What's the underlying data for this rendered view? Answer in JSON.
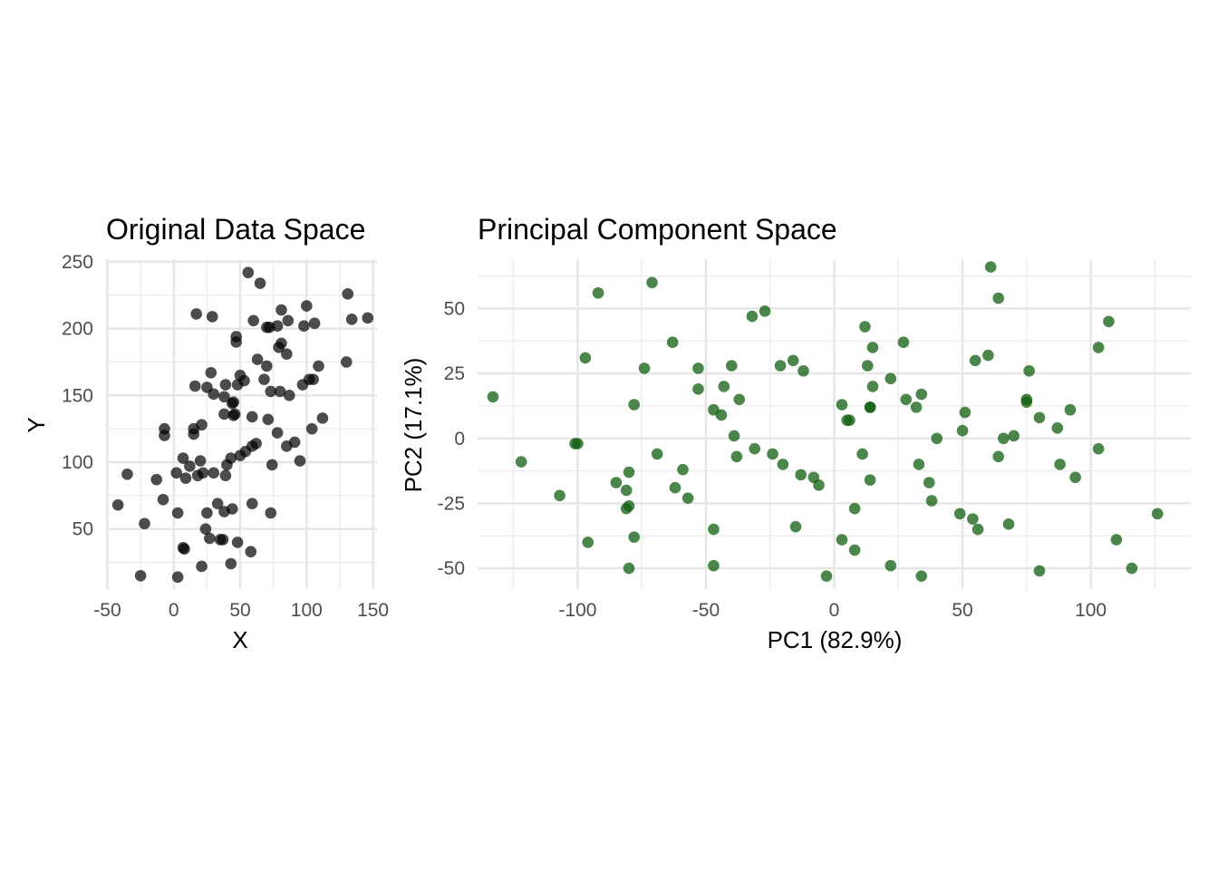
{
  "chart_data": [
    {
      "type": "scatter",
      "title": "Original Data Space",
      "xlabel": "X",
      "ylabel": "Y",
      "xlim": [
        -51,
        153
      ],
      "ylim": [
        5,
        252
      ],
      "xticks": [
        -50,
        0,
        50,
        100,
        150
      ],
      "yticks": [
        50,
        100,
        150,
        200,
        250
      ],
      "xtick_labels": [
        "-50",
        "0",
        "50",
        "100",
        "150"
      ],
      "ytick_labels": [
        "50",
        "100",
        "150",
        "200",
        "250"
      ],
      "grid": true,
      "point_color": "#000000",
      "point_opacity": 0.7,
      "series": [
        {
          "points": [
            [
              56,
              242
            ],
            [
              65,
              234
            ],
            [
              17,
              211
            ],
            [
              29,
              209
            ],
            [
              131,
              226
            ],
            [
              100,
              217
            ],
            [
              134,
              207
            ],
            [
              146,
              208
            ],
            [
              60,
              206
            ],
            [
              70,
              201
            ],
            [
              72,
              201
            ],
            [
              78,
              202
            ],
            [
              81,
              214
            ],
            [
              86,
              206
            ],
            [
              98,
              202
            ],
            [
              106,
              204
            ],
            [
              47,
              194
            ],
            [
              47,
              190
            ],
            [
              81,
              189
            ],
            [
              79,
              186
            ],
            [
              85,
              181
            ],
            [
              63,
              177
            ],
            [
              70,
              172
            ],
            [
              109,
              172
            ],
            [
              130,
              175
            ],
            [
              28,
              167
            ],
            [
              50,
              165
            ],
            [
              68,
              162
            ],
            [
              53,
              161
            ],
            [
              16,
              157
            ],
            [
              25,
              156
            ],
            [
              39,
              158
            ],
            [
              48,
              158
            ],
            [
              30,
              151
            ],
            [
              38,
              149
            ],
            [
              73,
              153
            ],
            [
              80,
              153
            ],
            [
              87,
              150
            ],
            [
              97,
              158
            ],
            [
              102,
              162
            ],
            [
              105,
              162
            ],
            [
              45,
              145
            ],
            [
              44,
              144
            ],
            [
              38,
              136
            ],
            [
              45,
              135
            ],
            [
              46,
              136
            ],
            [
              59,
              134
            ],
            [
              71,
              132
            ],
            [
              78,
              122
            ],
            [
              104,
              125
            ],
            [
              112,
              133
            ],
            [
              -7,
              125
            ],
            [
              -7,
              120
            ],
            [
              15,
              125
            ],
            [
              21,
              128
            ],
            [
              15,
              121
            ],
            [
              62,
              114
            ],
            [
              59,
              112
            ],
            [
              54,
              108
            ],
            [
              50,
              105
            ],
            [
              43,
              103
            ],
            [
              85,
              112
            ],
            [
              91,
              115
            ],
            [
              74,
              98
            ],
            [
              95,
              101
            ],
            [
              -35,
              91
            ],
            [
              7,
              103
            ],
            [
              12,
              97
            ],
            [
              20,
              101
            ],
            [
              2,
              92
            ],
            [
              9,
              88
            ],
            [
              18,
              90
            ],
            [
              22,
              92
            ],
            [
              30,
              92
            ],
            [
              39,
              90
            ],
            [
              40,
              98
            ],
            [
              -13,
              87
            ],
            [
              -8,
              72
            ],
            [
              -42,
              68
            ],
            [
              -22,
              54
            ],
            [
              3,
              62
            ],
            [
              25,
              62
            ],
            [
              33,
              69
            ],
            [
              38,
              63
            ],
            [
              44,
              65
            ],
            [
              59,
              69
            ],
            [
              73,
              62
            ],
            [
              24,
              50
            ],
            [
              27,
              43
            ],
            [
              35,
              42
            ],
            [
              37,
              42
            ],
            [
              48,
              40
            ],
            [
              7,
              36
            ],
            [
              8,
              35
            ],
            [
              58,
              33
            ],
            [
              21,
              22
            ],
            [
              43,
              24
            ],
            [
              -25,
              15
            ],
            [
              3,
              14
            ]
          ]
        }
      ]
    },
    {
      "type": "scatter",
      "title": "Principal Component Space",
      "xlabel": "PC1 (82.9%)",
      "ylabel": "PC2 (17.1%)",
      "xlim": [
        -139,
        139
      ],
      "ylim": [
        -58,
        69
      ],
      "xticks": [
        -100,
        -50,
        0,
        50,
        100
      ],
      "yticks": [
        -50,
        -25,
        0,
        25,
        50
      ],
      "xtick_labels": [
        "-100",
        "-50",
        "0",
        "50",
        "100"
      ],
      "ytick_labels": [
        "-50",
        "-25",
        "0",
        "25",
        "50"
      ],
      "grid": true,
      "point_color": "#0f5e0f",
      "point_opacity": 0.75,
      "series": [
        {
          "points": [
            [
              -133,
              16
            ],
            [
              -122,
              -9
            ],
            [
              -107,
              -22
            ],
            [
              -101,
              -2
            ],
            [
              -100,
              -2
            ],
            [
              -97,
              31
            ],
            [
              -96,
              -40
            ],
            [
              -92,
              56
            ],
            [
              -85,
              -17
            ],
            [
              -81,
              -27
            ],
            [
              -81,
              -20
            ],
            [
              -80,
              -13
            ],
            [
              -80,
              -26
            ],
            [
              -80,
              -50
            ],
            [
              -78,
              13
            ],
            [
              -78,
              -38
            ],
            [
              -74,
              27
            ],
            [
              -71,
              60
            ],
            [
              -69,
              -6
            ],
            [
              -63,
              37
            ],
            [
              -62,
              -19
            ],
            [
              -59,
              -12
            ],
            [
              -57,
              -23
            ],
            [
              -53,
              27
            ],
            [
              -53,
              19
            ],
            [
              -47,
              11
            ],
            [
              -47,
              -35
            ],
            [
              -47,
              -49
            ],
            [
              -44,
              9
            ],
            [
              -43,
              20
            ],
            [
              -40,
              28
            ],
            [
              -39,
              1
            ],
            [
              -38,
              -7
            ],
            [
              -37,
              15
            ],
            [
              -32,
              47
            ],
            [
              -31,
              -4
            ],
            [
              -27,
              49
            ],
            [
              -24,
              -6
            ],
            [
              -21,
              28
            ],
            [
              -20,
              -10
            ],
            [
              -16,
              30
            ],
            [
              -15,
              -34
            ],
            [
              -13,
              -14
            ],
            [
              -12,
              26
            ],
            [
              -8,
              -15
            ],
            [
              -6,
              -18
            ],
            [
              -3,
              -53
            ],
            [
              3,
              13
            ],
            [
              3,
              -39
            ],
            [
              5,
              7
            ],
            [
              6,
              7
            ],
            [
              8,
              -27
            ],
            [
              8,
              -43
            ],
            [
              11,
              -6
            ],
            [
              12,
              43
            ],
            [
              13,
              28
            ],
            [
              14,
              12
            ],
            [
              14,
              12
            ],
            [
              14,
              -16
            ],
            [
              15,
              35
            ],
            [
              15,
              20
            ],
            [
              22,
              23
            ],
            [
              22,
              -49
            ],
            [
              27,
              37
            ],
            [
              28,
              15
            ],
            [
              32,
              12
            ],
            [
              33,
              -10
            ],
            [
              34,
              17
            ],
            [
              34,
              -53
            ],
            [
              37,
              -17
            ],
            [
              38,
              -24
            ],
            [
              40,
              0
            ],
            [
              49,
              -29
            ],
            [
              50,
              3
            ],
            [
              51,
              10
            ],
            [
              54,
              -31
            ],
            [
              55,
              30
            ],
            [
              56,
              -35
            ],
            [
              60,
              32
            ],
            [
              61,
              66
            ],
            [
              64,
              -7
            ],
            [
              64,
              54
            ],
            [
              66,
              0
            ],
            [
              68,
              -33
            ],
            [
              70,
              1
            ],
            [
              75,
              14
            ],
            [
              75,
              15
            ],
            [
              76,
              26
            ],
            [
              80,
              -51
            ],
            [
              80,
              8
            ],
            [
              87,
              4
            ],
            [
              88,
              -10
            ],
            [
              92,
              11
            ],
            [
              94,
              -15
            ],
            [
              103,
              -4
            ],
            [
              103,
              35
            ],
            [
              107,
              45
            ],
            [
              110,
              -39
            ],
            [
              116,
              -50
            ],
            [
              126,
              -29
            ]
          ]
        }
      ]
    }
  ]
}
